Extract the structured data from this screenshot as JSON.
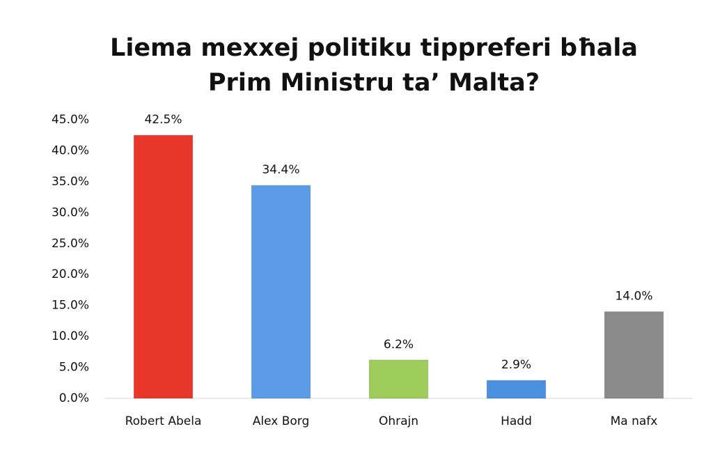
{
  "chart_data": {
    "type": "bar",
    "title": [
      "Liema mexxej politiku tippreferi bħala",
      "Prim Ministru ta’ Malta?"
    ],
    "categories": [
      "Robert Abela",
      "Alex Borg",
      "Ohrajn",
      "Hadd",
      "Ma nafx"
    ],
    "values": [
      42.5,
      34.4,
      6.2,
      2.9,
      14.0
    ],
    "value_labels": [
      "42.5%",
      "34.4%",
      "6.2%",
      "2.9%",
      "14.0%"
    ],
    "colors": [
      "#e8362b",
      "#5c9ce6",
      "#9dcc5a",
      "#4b8fdf",
      "#8a8a8a"
    ],
    "ylim": [
      0,
      45
    ],
    "yticks": [
      {
        "value": 0,
        "label": "0.0%"
      },
      {
        "value": 5,
        "label": "5.0%"
      },
      {
        "value": 10,
        "label": "10.0%"
      },
      {
        "value": 15,
        "label": "15.0%"
      },
      {
        "value": 20,
        "label": "20.0%"
      },
      {
        "value": 25,
        "label": "25.0%"
      },
      {
        "value": 30,
        "label": "30.0%"
      },
      {
        "value": 35,
        "label": "35.0%"
      },
      {
        "value": 40,
        "label": "40.0%"
      },
      {
        "value": 45,
        "label": "45.0%"
      }
    ],
    "grid": false
  }
}
